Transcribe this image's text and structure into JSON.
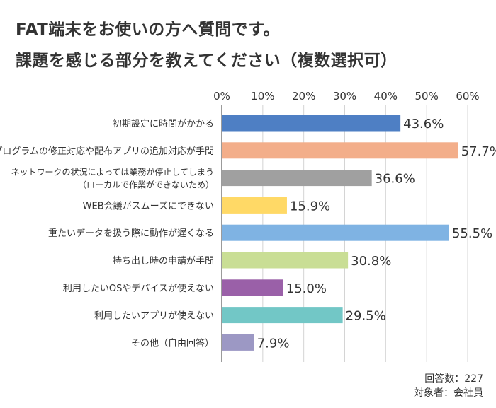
{
  "title_line1": "FAT端末をお使いの方へ質問です。",
  "title_line2": "課題を感じる部分を教えてください（複数選択可）",
  "notes": {
    "respondents": "回答数：227",
    "target": "対象者：会社員"
  },
  "chart_data": {
    "type": "bar",
    "orientation": "horizontal",
    "xlim": [
      0,
      60
    ],
    "x_ticks": [
      "0%",
      "10%",
      "20%",
      "30%",
      "40%",
      "50%",
      "60%"
    ],
    "grid": true,
    "categories": [
      [
        "初期設定に時間がかかる"
      ],
      [
        "プログラムの修正対応や配布アプリの追加対応が手間"
      ],
      [
        "ネットワークの状況によっては業務が停止してしまう",
        "（ローカルで作業ができないため）"
      ],
      [
        "WEB会議がスムーズにできない"
      ],
      [
        "重たいデータを扱う際に動作が遅くなる"
      ],
      [
        "持ち出し時の申請が手間"
      ],
      [
        "利用したいOSやデバイスが使えない"
      ],
      [
        "利用したいアプリが使えない"
      ],
      [
        "その他（自由回答）"
      ]
    ],
    "values": [
      43.6,
      57.7,
      36.6,
      15.9,
      55.5,
      30.8,
      15.0,
      29.5,
      7.9
    ],
    "value_labels": [
      "43.6%",
      "57.7%",
      "36.6%",
      "15.9%",
      "55.5%",
      "30.8%",
      "15.0%",
      "29.5%",
      "7.9%"
    ],
    "colors": [
      "#4e7fc4",
      "#f3ae8a",
      "#a0a0a0",
      "#ffd966",
      "#7fb3e3",
      "#c9de95",
      "#9a60a8",
      "#72c7c6",
      "#9c98c4"
    ]
  }
}
